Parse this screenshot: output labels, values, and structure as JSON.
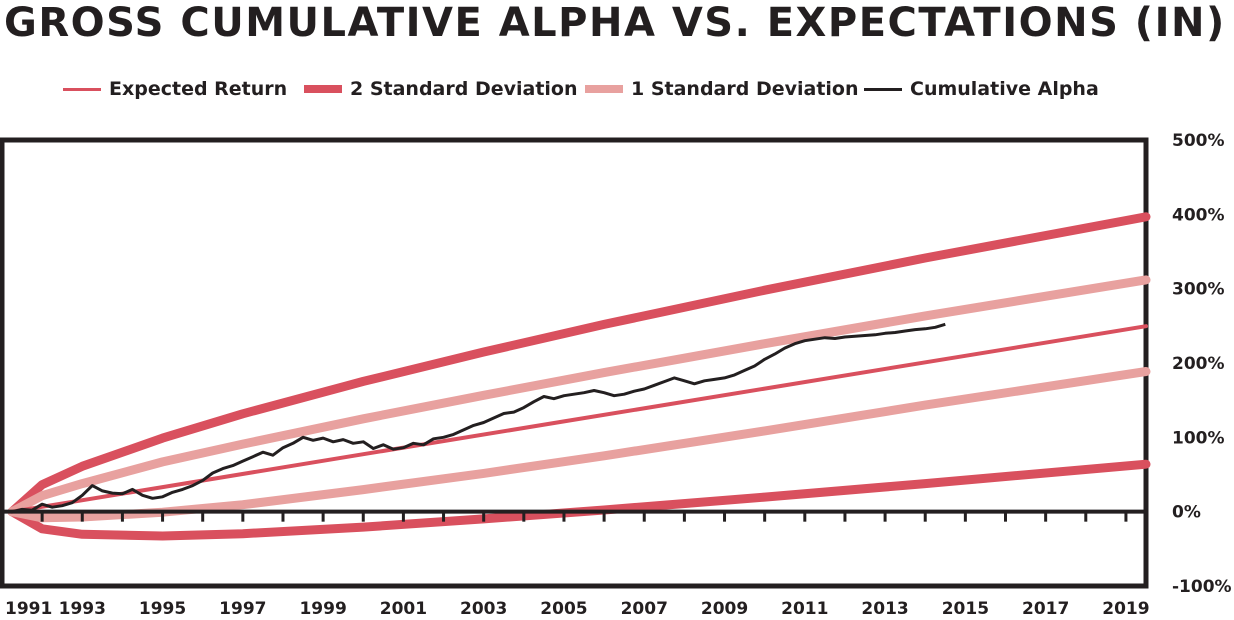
{
  "chart_data": {
    "type": "line",
    "title": "GROSS CUMULATIVE ALPHA VS. EXPECTATIONS (IN)",
    "legend_position": "top",
    "x_ticks": [
      "1991",
      "1993",
      "1995",
      "1997",
      "1999",
      "2001",
      "2003",
      "2005",
      "2007",
      "2009",
      "2011",
      "2013",
      "2015",
      "2017",
      "2019"
    ],
    "xlim": [
      1991,
      2019.5
    ],
    "y_ticks": [
      "500%",
      "400%",
      "300%",
      "200%",
      "100%",
      "0%",
      "-100%"
    ],
    "ylim": [
      -100,
      500
    ],
    "grid": false,
    "series": [
      {
        "name": "Expected Return",
        "color": "#d9505e",
        "x": [
          1991.25,
          1995,
          2000,
          2005,
          2010,
          2015,
          2019.5
        ],
        "y": [
          0,
          33.1,
          77.3,
          121.4,
          165.6,
          209.7,
          249.5
        ]
      },
      {
        "name": "2 Standard Deviation",
        "color": "#d9505e",
        "bands": [
          {
            "x": [
              1991.25,
              1992,
              1993,
              1995,
              1997,
              2000,
              2003,
              2006,
              2010,
              2014,
              2019.5
            ],
            "y": [
              0,
              36.3,
              61,
              99,
              131.7,
              175.3,
              214.8,
              251.9,
              298,
              341.2,
              396.7
            ]
          },
          {
            "x": [
              1991.25,
              1992,
              1993,
              1995,
              1997,
              2000,
              2003,
              2006,
              2010,
              2014,
              2019.5
            ],
            "y": [
              0,
              -23.1,
              -30.4,
              -32.8,
              -29.6,
              -20.7,
              -9.7,
              2.3,
              19.6,
              37.7,
              63.8
            ]
          }
        ]
      },
      {
        "name": "1 Standard Deviation",
        "color": "#e8a19f",
        "bands": [
          {
            "x": [
              1991.25,
              1992,
              1993,
              1995,
              1997,
              2000,
              2003,
              2006,
              2010,
              2014,
              2019.5
            ],
            "y": [
              0,
              21.5,
              37.8,
              66.9,
              90.9,
              124.9,
              156.6,
              187.1,
              226,
              263.4,
              311.8
            ]
          },
          {
            "x": [
              1991.25,
              1992,
              1993,
              1995,
              1997,
              2000,
              2003,
              2006,
              2010,
              2014,
              2019.5
            ],
            "y": [
              0,
              -8.3,
              -7.2,
              -0.7,
              9.4,
              29.7,
              51.5,
              75.2,
              108.6,
              143.3,
              188.6
            ]
          }
        ]
      },
      {
        "name": "Cumulative Alpha",
        "color": "#231f20",
        "x": [
          1991.25,
          1991.5,
          1991.75,
          1992,
          1992.25,
          1992.5,
          1992.75,
          1993,
          1993.25,
          1993.5,
          1993.75,
          1994,
          1994.25,
          1994.5,
          1994.75,
          1995,
          1995.25,
          1995.5,
          1995.75,
          1996,
          1996.25,
          1996.5,
          1996.75,
          1997,
          1997.25,
          1997.5,
          1997.75,
          1998,
          1998.25,
          1998.5,
          1998.75,
          1999,
          1999.25,
          1999.5,
          1999.75,
          2000,
          2000.25,
          2000.5,
          2000.75,
          2001,
          2001.25,
          2001.5,
          2001.75,
          2002,
          2002.25,
          2002.5,
          2002.75,
          2003,
          2003.25,
          2003.5,
          2003.75,
          2004,
          2004.25,
          2004.5,
          2004.75,
          2005,
          2005.25,
          2005.5,
          2005.75,
          2006,
          2006.25,
          2006.5,
          2006.75,
          2007,
          2007.25,
          2007.5,
          2007.75,
          2008,
          2008.25,
          2008.5,
          2008.75,
          2009,
          2009.25,
          2009.5,
          2009.75,
          2010,
          2010.25,
          2010.5,
          2010.75,
          2011,
          2011.25,
          2011.5,
          2011.75,
          2012,
          2012.25,
          2012.5,
          2012.75,
          2013,
          2013.25,
          2013.5,
          2013.75,
          2014,
          2014.25,
          2014.5
        ],
        "y": [
          0,
          3,
          2,
          10,
          6,
          8,
          12,
          22,
          35,
          28,
          25,
          24,
          30,
          22,
          18,
          20,
          26,
          30,
          35,
          42,
          52,
          58,
          62,
          68,
          74,
          80,
          76,
          86,
          92,
          100,
          96,
          99,
          94,
          97,
          92,
          94,
          85,
          90,
          84,
          86,
          92,
          90,
          98,
          100,
          104,
          110,
          116,
          120,
          126,
          132,
          134,
          140,
          148,
          155,
          152,
          156,
          158,
          160,
          163,
          160,
          156,
          158,
          162,
          165,
          170,
          175,
          180,
          176,
          172,
          176,
          178,
          180,
          184,
          190,
          196,
          205,
          212,
          220,
          226,
          230,
          232,
          234,
          233,
          235,
          236,
          237,
          238,
          240,
          241,
          243,
          245,
          246,
          248,
          252
        ]
      }
    ]
  },
  "legend": {
    "expected": "Expected Return",
    "two_sd": "2 Standard Deviation",
    "one_sd": "1 Standard Deviation",
    "alpha": "Cumulative Alpha"
  }
}
